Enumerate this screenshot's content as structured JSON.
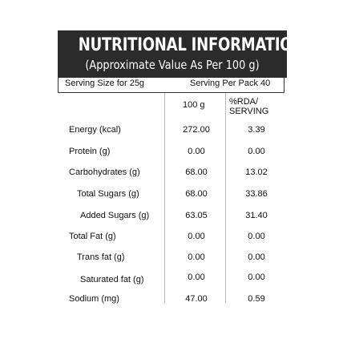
{
  "header": {
    "title": "NUTRITIONAL INFORMATION",
    "subtitle": "(Approximate Value As Per 100 g)"
  },
  "serving": {
    "size": "Serving Size for 25g",
    "per_pack": "Serving Per Pack 40"
  },
  "columns": {
    "per100": "100 g",
    "rda_line1": "%RDA/",
    "rda_line2": "SERVING"
  },
  "rows": [
    {
      "label": "Energy (kcal)",
      "per100": "272.00",
      "rda": "3.39"
    },
    {
      "label": "Protein (g)",
      "per100": "0.00",
      "rda": "0.00"
    },
    {
      "label": "Carbohydrates (g)",
      "per100": "68.00",
      "rda": "13.02"
    },
    {
      "label": "Total Sugars (g)",
      "per100": "68.00",
      "rda": "33.86"
    },
    {
      "label": "Added Sugars (g)",
      "per100": "63.05",
      "rda": "31.40"
    },
    {
      "label": "Total Fat (g)",
      "per100": "0.00",
      "rda": "0.00"
    },
    {
      "label": "Trans fat (g)",
      "per100": "0.00",
      "rda": "0.00"
    },
    {
      "label": "Saturated fat (g)",
      "per100": "0.00",
      "rda": "0.00"
    },
    {
      "label": "Sodium (mg)",
      "per100": "47.00",
      "rda": "0.59"
    }
  ]
}
